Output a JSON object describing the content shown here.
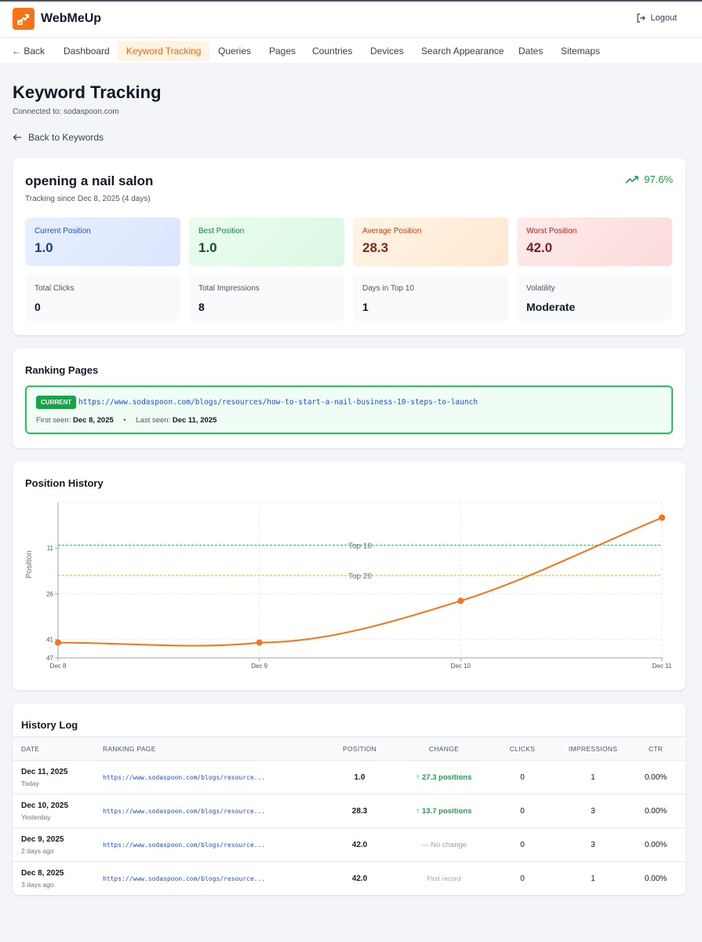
{
  "app": {
    "brand": "WebMeUp",
    "logout": "Logout"
  },
  "nav": {
    "back": "← Back",
    "items": [
      "Dashboard",
      "Keyword Tracking",
      "Queries",
      "Pages",
      "Countries",
      "Devices",
      "Search Appearance",
      "Dates",
      "Sitemaps"
    ],
    "active": "Keyword Tracking"
  },
  "page": {
    "title": "Keyword Tracking",
    "connected": "Connected to: sodaspoon.com",
    "back_link": "Back to Keywords"
  },
  "keyword": {
    "name": "opening a nail salon",
    "since": "Tracking since Dec 8, 2025 (4 days)",
    "trend": "97.6%",
    "stats": [
      {
        "label": "Current Position",
        "value": "1.0"
      },
      {
        "label": "Best Position",
        "value": "1.0"
      },
      {
        "label": "Average Position",
        "value": "28.3"
      },
      {
        "label": "Worst Position",
        "value": "42.0"
      },
      {
        "label": "Total Clicks",
        "value": "0"
      },
      {
        "label": "Total Impressions",
        "value": "8"
      },
      {
        "label": "Days in Top 10",
        "value": "1"
      },
      {
        "label": "Volatility",
        "value": "Moderate"
      }
    ]
  },
  "ranking": {
    "title": "Ranking Pages",
    "badge": "CURRENT",
    "url": "https://www.sodaspoon.com/blogs/resources/how-to-start-a-nail-business-10-steps-to-launch",
    "first_seen_label": "First seen:",
    "first_seen": "Dec 8, 2025",
    "sep": "•",
    "last_seen_label": "Last seen:",
    "last_seen": "Dec 11, 2025"
  },
  "history_chart": {
    "title": "Position History"
  },
  "chart_data": {
    "type": "line",
    "ylabel": "Position",
    "x": [
      "Dec 8",
      "Dec 9",
      "Dec 10",
      "Dec 11"
    ],
    "series": [
      {
        "values": [
          42,
          42,
          28.3,
          1
        ]
      }
    ],
    "y_reversed": true,
    "ylim": [
      47,
      -4
    ],
    "yticks": [
      11,
      26,
      41,
      47
    ],
    "reference_lines": [
      {
        "label": "Top 10",
        "value": 10,
        "color": "#22c55e"
      },
      {
        "label": "Top 20",
        "value": 20,
        "color": "#eab308"
      }
    ],
    "line_color": "#f97316",
    "grid": true
  },
  "log": {
    "title": "History Log",
    "headers": [
      "DATE",
      "RANKING PAGE",
      "POSITION",
      "CHANGE",
      "CLICKS",
      "IMPRESSIONS",
      "CTR"
    ],
    "rows": [
      {
        "date": "Dec 11, 2025",
        "rel": "Today",
        "url": "https://www.sodaspoon.com/blogs/resource...",
        "position": "1.0",
        "change": "↑ 27.3 positions",
        "change_type": "up",
        "clicks": "0",
        "impressions": "1",
        "ctr": "0.00%"
      },
      {
        "date": "Dec 10, 2025",
        "rel": "Yesterday",
        "url": "https://www.sodaspoon.com/blogs/resource...",
        "position": "28.3",
        "change": "↑ 13.7 positions",
        "change_type": "up",
        "clicks": "0",
        "impressions": "3",
        "ctr": "0.00%"
      },
      {
        "date": "Dec 9, 2025",
        "rel": "2 days ago",
        "url": "https://www.sodaspoon.com/blogs/resource...",
        "position": "42.0",
        "change": "— No change",
        "change_type": "none",
        "clicks": "0",
        "impressions": "3",
        "ctr": "0.00%"
      },
      {
        "date": "Dec 8, 2025",
        "rel": "3 days ago",
        "url": "https://www.sodaspoon.com/blogs/resource...",
        "position": "42.0",
        "change": "First record",
        "change_type": "first",
        "clicks": "0",
        "impressions": "1",
        "ctr": "0.00%"
      }
    ]
  },
  "colors": {
    "accent": "#f97316",
    "success": "#16a34a",
    "stat_blue": "#e0ecff",
    "stat_green": "#e3fbe9",
    "stat_orange": "#ffefdd",
    "stat_red": "#fde4e4"
  }
}
